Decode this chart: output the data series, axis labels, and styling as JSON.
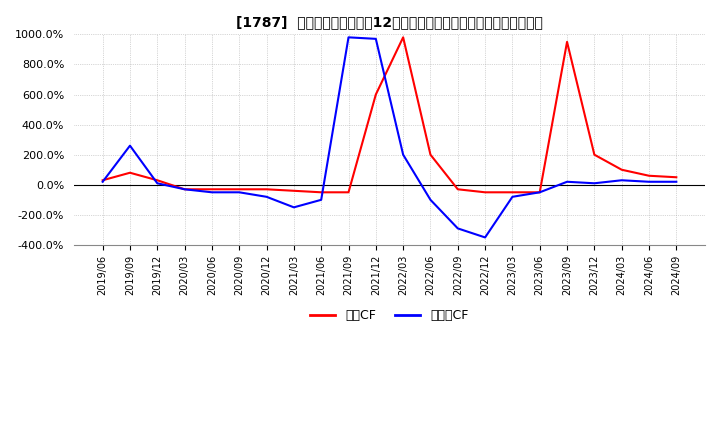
{
  "title": "[1787]  キャッシュフローの12か月移動合計の対前年同期増減率の推移",
  "legend_labels": [
    "営業CF",
    "フリーCF"
  ],
  "line_colors": [
    "#ff0000",
    "#0000ff"
  ],
  "ylim": [
    -400,
    1000
  ],
  "yticks": [
    -400,
    -200,
    0,
    200,
    400,
    600,
    800,
    1000
  ],
  "background_color": "#ffffff",
  "grid_color": "#b0b0b0",
  "dates": [
    "2019/06",
    "2019/09",
    "2019/12",
    "2020/03",
    "2020/06",
    "2020/09",
    "2020/12",
    "2021/03",
    "2021/06",
    "2021/09",
    "2021/12",
    "2022/03",
    "2022/06",
    "2022/09",
    "2022/12",
    "2023/03",
    "2023/06",
    "2023/09",
    "2023/12",
    "2024/03",
    "2024/06",
    "2024/09"
  ],
  "operating_cf": [
    30,
    80,
    30,
    -30,
    -30,
    -30,
    -30,
    -40,
    -50,
    -50,
    600,
    980,
    200,
    -30,
    -50,
    -50,
    -50,
    950,
    200,
    100,
    60,
    50
  ],
  "free_cf": [
    20,
    260,
    10,
    -30,
    -50,
    -50,
    -80,
    -150,
    -100,
    980,
    970,
    200,
    -100,
    -290,
    -350,
    -80,
    -50,
    20,
    10,
    30,
    20,
    20
  ]
}
